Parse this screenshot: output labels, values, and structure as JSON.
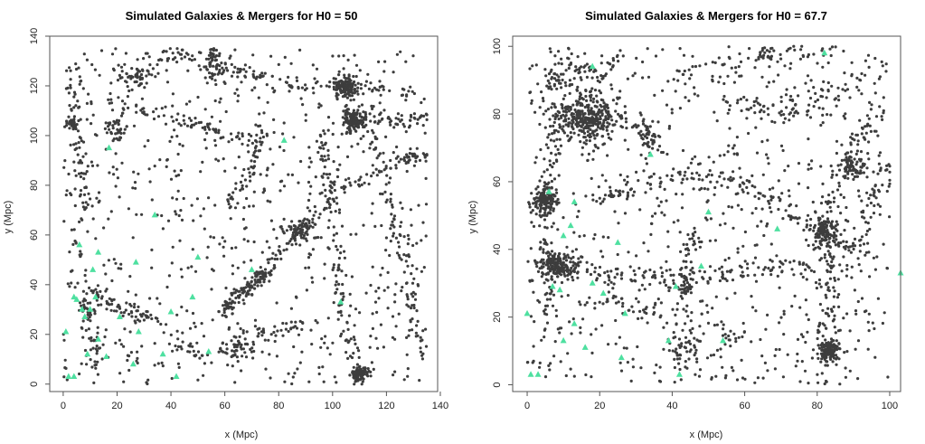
{
  "figure": {
    "panels": [
      {
        "title": "Simulated Galaxies & Mergers for H0 = 50",
        "xlabel": "x (Mpc)",
        "ylabel": "y (Mpc)",
        "xticks": [
          "0",
          "20",
          "40",
          "60",
          "80",
          "100",
          "120",
          "140"
        ],
        "yticks": [
          "0",
          "20",
          "40",
          "60",
          "80",
          "100",
          "120",
          "140"
        ]
      },
      {
        "title": "Simulated Galaxies & Mergers for H0 = 67.7",
        "xlabel": "x (Mpc)",
        "ylabel": "y (Mpc)",
        "xticks": [
          "0",
          "20",
          "40",
          "60",
          "80",
          "100"
        ],
        "yticks": [
          "0",
          "20",
          "40",
          "60",
          "80",
          "100"
        ]
      }
    ]
  },
  "colors": {
    "galaxy": "#3d3d3d",
    "merger": "#4ee0a0"
  },
  "chart_data": [
    {
      "type": "scatter",
      "title": "Simulated Galaxies & Mergers for H0 = 50",
      "xlabel": "x (Mpc)",
      "ylabel": "y (Mpc)",
      "xlim": [
        -5,
        139
      ],
      "ylim": [
        -3,
        140
      ],
      "xticks": [
        0,
        20,
        40,
        60,
        80,
        100,
        120,
        140
      ],
      "yticks": [
        0,
        20,
        40,
        60,
        80,
        100,
        120,
        140
      ],
      "grid": false,
      "series": [
        {
          "marker": "circle",
          "color": "#3d3d3d",
          "count_estimate": 3000,
          "note_distribution": "cosmic-web filaments, dense clusters near (105,120),(108,105),(110,5),(88,62)"
        },
        {
          "marker": "triangle",
          "color": "#4ee0a0",
          "points": [
            [
              1,
              21
            ],
            [
              2,
              3
            ],
            [
              4,
              3
            ],
            [
              4,
              35
            ],
            [
              5,
              34
            ],
            [
              6,
              56
            ],
            [
              7,
              30
            ],
            [
              8,
              27
            ],
            [
              9,
              12
            ],
            [
              10,
              30
            ],
            [
              11,
              46
            ],
            [
              12,
              35
            ],
            [
              13,
              53
            ],
            [
              13,
              18
            ],
            [
              16,
              11
            ],
            [
              17,
              95
            ],
            [
              21,
              27
            ],
            [
              26,
              8
            ],
            [
              27,
              49
            ],
            [
              28,
              21
            ],
            [
              34,
              68
            ],
            [
              37,
              12
            ],
            [
              40,
              29
            ],
            [
              42,
              3
            ],
            [
              48,
              35
            ],
            [
              50,
              51
            ],
            [
              54,
              13
            ],
            [
              70,
              46
            ],
            [
              82,
              98
            ],
            [
              103,
              33
            ]
          ]
        }
      ]
    },
    {
      "type": "scatter",
      "title": "Simulated Galaxies & Mergers for H0 = 67.7",
      "xlabel": "x (Mpc)",
      "ylabel": "y (Mpc)",
      "xlim": [
        -4,
        103
      ],
      "ylim": [
        -2,
        103
      ],
      "xticks": [
        0,
        20,
        40,
        60,
        80,
        100
      ],
      "yticks": [
        0,
        20,
        40,
        60,
        80,
        100
      ],
      "grid": false,
      "series": [
        {
          "marker": "circle",
          "color": "#3d3d3d",
          "count_estimate": 3200,
          "note_distribution": "cosmic-web filaments, dense clusters near (17,79),(8,35),(83,10),(5,55)"
        },
        {
          "marker": "triangle",
          "color": "#4ee0a0",
          "points": [
            [
              0,
              21
            ],
            [
              1,
              3
            ],
            [
              3,
              3
            ],
            [
              6,
              57
            ],
            [
              7,
              29
            ],
            [
              9,
              28
            ],
            [
              10,
              44
            ],
            [
              10,
              13
            ],
            [
              12,
              47
            ],
            [
              13,
              54
            ],
            [
              13,
              18
            ],
            [
              16,
              11
            ],
            [
              18,
              94
            ],
            [
              21,
              27
            ],
            [
              26,
              8
            ],
            [
              27,
              21
            ],
            [
              34,
              68
            ],
            [
              39,
              13
            ],
            [
              41,
              29
            ],
            [
              42,
              3
            ],
            [
              48,
              35
            ],
            [
              50,
              51
            ],
            [
              54,
              13
            ],
            [
              69,
              46
            ],
            [
              82,
              98
            ],
            [
              103,
              33
            ],
            [
              18,
              30
            ],
            [
              25,
              42
            ]
          ]
        }
      ]
    }
  ]
}
